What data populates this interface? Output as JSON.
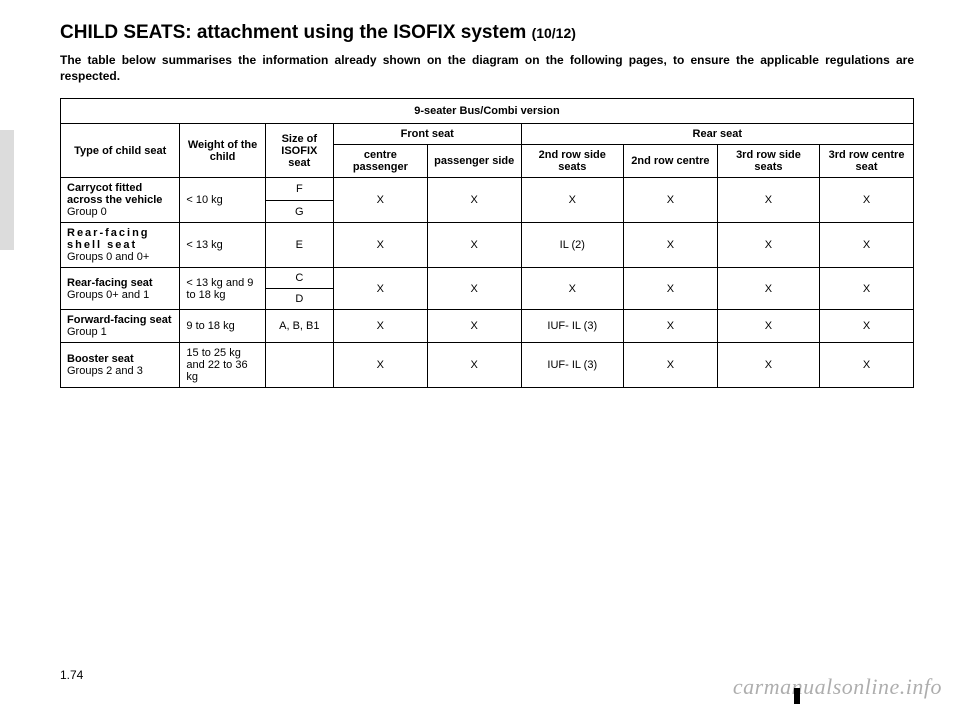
{
  "title_main": "CHILD SEATS: attachment using the ISOFIX system ",
  "title_sub": "(10/12)",
  "intro": "The table below summarises the information already shown on the diagram on the following pages, to ensure the applicable regulations are respected.",
  "table": {
    "caption": "9-seater Bus/Combi version",
    "head": {
      "type": "Type of child seat",
      "weight": "Weight of the child",
      "size": "Size of ISOFIX seat",
      "front": "Front seat",
      "rear": "Rear seat",
      "centre_passenger": "centre passenger",
      "passenger_side": "passenger side",
      "row2_side": "2nd row side seats",
      "row2_centre": "2nd row centre",
      "row3_side": "3rd row side seats",
      "row3_centre": "3rd row centre seat"
    },
    "rows": [
      {
        "type_strong": "Carrycot fitted across the vehicle",
        "type_light": "Group 0",
        "type_spaced": false,
        "weight": "< 10 kg",
        "sizes": [
          "F",
          "G"
        ],
        "cells": [
          "X",
          "X",
          "X",
          "X",
          "X",
          "X"
        ]
      },
      {
        "type_strong": "Rear-facing shell seat",
        "type_light": "Groups 0 and 0+",
        "type_spaced": true,
        "weight": "< 13 kg",
        "sizes": [
          "E"
        ],
        "cells": [
          "X",
          "X",
          "IL (2)",
          "X",
          "X",
          "X"
        ]
      },
      {
        "type_strong": "Rear-facing seat",
        "type_light": "Groups 0+ and 1",
        "type_spaced": false,
        "weight": "< 13 kg and 9 to 18 kg",
        "sizes": [
          "C",
          "D"
        ],
        "cells": [
          "X",
          "X",
          "X",
          "X",
          "X",
          "X"
        ]
      },
      {
        "type_strong": "Forward-facing seat",
        "type_light": "Group 1",
        "type_spaced": false,
        "weight": "9 to 18 kg",
        "sizes": [
          "A, B, B1"
        ],
        "cells": [
          "X",
          "X",
          "IUF- IL (3)",
          "X",
          "X",
          "X"
        ]
      },
      {
        "type_strong": "Booster seat",
        "type_light": "Groups 2 and 3",
        "type_spaced": false,
        "weight": "15 to 25 kg and 22 to 36 kg",
        "sizes": [
          ""
        ],
        "cells": [
          "X",
          "X",
          "IUF- IL (3)",
          "X",
          "X",
          "X"
        ]
      }
    ]
  },
  "page_number": "1.74",
  "watermark": "carmanualsonline.info"
}
